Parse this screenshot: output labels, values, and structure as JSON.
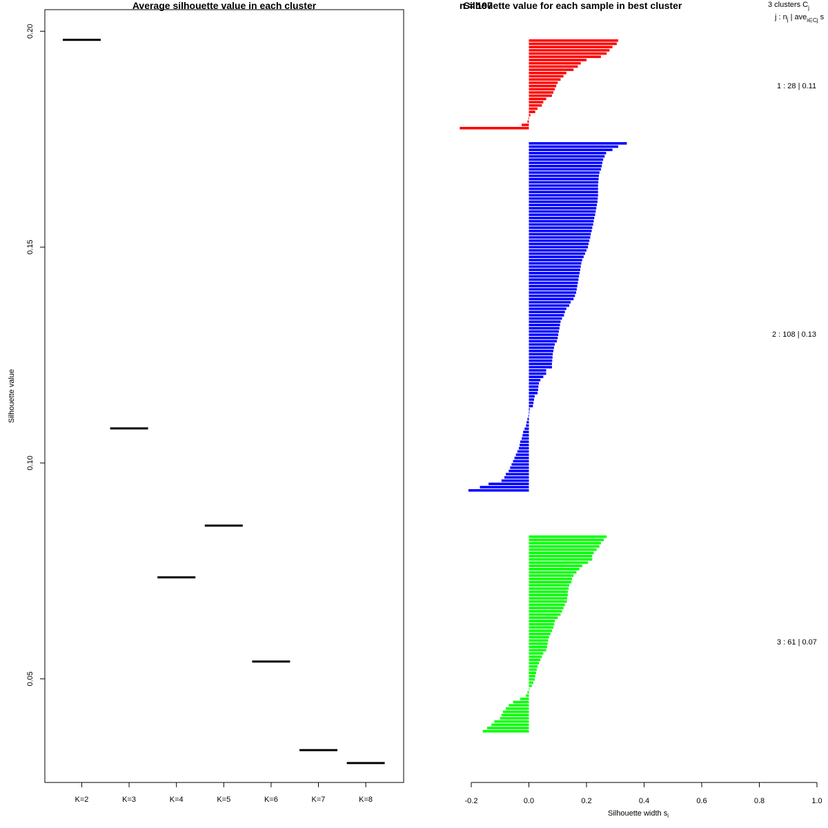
{
  "chart_data": [
    {
      "type": "line",
      "title": "Average silhouette value in each cluster",
      "xlabel": "",
      "ylabel": "Silhouette value",
      "categories": [
        "K=2",
        "K=3",
        "K=4",
        "K=5",
        "K=6",
        "K=7",
        "K=8"
      ],
      "values": [
        0.198,
        0.108,
        0.0735,
        0.0855,
        0.054,
        0.0335,
        0.0305
      ],
      "yticks": [
        "0.05",
        "0.10",
        "0.15",
        "0.20"
      ],
      "ylim": [
        0.026,
        0.205
      ],
      "marker": "horizontal-segment"
    },
    {
      "type": "bar",
      "orientation": "horizontal",
      "title": "Silhouette value for each sample in best cluster",
      "title_overlap": "n = 197",
      "xlabel": "Silhouette width s",
      "xlabel_sub": "i",
      "xticks": [
        "-0.2",
        "0.0",
        "0.2",
        "0.4",
        "0.6",
        "0.8",
        "1.0"
      ],
      "xlim": [
        -0.2,
        1.0
      ],
      "legend_header_1": "3  clusters  C",
      "legend_header_1_sub": "j",
      "legend_header_2": "j :  n",
      "legend_header_2_sub": "j",
      "legend_header_2_rest": " | ave",
      "legend_header_2_sub2": "i∈Cj",
      "legend_header_2_end": "  s",
      "series": [
        {
          "name": "cluster 1",
          "label": "1 :  28  |  0.11",
          "color": "#ff0000",
          "values": [
            0.31,
            0.305,
            0.29,
            0.28,
            0.27,
            0.25,
            0.2,
            0.18,
            0.17,
            0.155,
            0.13,
            0.12,
            0.11,
            0.1,
            0.095,
            0.09,
            0.085,
            0.08,
            0.06,
            0.05,
            0.045,
            0.03,
            0.022,
            0.005,
            -0.002,
            -0.005,
            -0.025,
            -0.24
          ]
        },
        {
          "name": "cluster 2",
          "label": "2 :  108  |  0.13",
          "color": "#0000ff",
          "values": [
            0.34,
            0.31,
            0.29,
            0.268,
            0.263,
            0.258,
            0.255,
            0.253,
            0.25,
            0.245,
            0.243,
            0.242,
            0.241,
            0.24,
            0.24,
            0.24,
            0.24,
            0.239,
            0.238,
            0.236,
            0.234,
            0.232,
            0.23,
            0.227,
            0.225,
            0.223,
            0.22,
            0.218,
            0.215,
            0.213,
            0.21,
            0.207,
            0.205,
            0.2,
            0.195,
            0.19,
            0.185,
            0.182,
            0.18,
            0.178,
            0.176,
            0.174,
            0.172,
            0.17,
            0.168,
            0.166,
            0.164,
            0.16,
            0.155,
            0.145,
            0.14,
            0.13,
            0.125,
            0.122,
            0.115,
            0.11,
            0.108,
            0.106,
            0.104,
            0.102,
            0.1,
            0.097,
            0.09,
            0.087,
            0.085,
            0.083,
            0.082,
            0.081,
            0.08,
            0.08,
            0.06,
            0.06,
            0.05,
            0.04,
            0.035,
            0.033,
            0.032,
            0.03,
            0.02,
            0.018,
            0.016,
            0.014,
            0.003,
            0.0,
            -0.002,
            -0.005,
            -0.008,
            -0.01,
            -0.015,
            -0.02,
            -0.022,
            -0.025,
            -0.03,
            -0.032,
            -0.035,
            -0.04,
            -0.045,
            -0.05,
            -0.055,
            -0.06,
            -0.065,
            -0.07,
            -0.08,
            -0.085,
            -0.095,
            -0.14,
            -0.17,
            -0.21
          ]
        },
        {
          "name": "cluster 3",
          "label": "3 :  61  |  0.07",
          "color": "#00ff00",
          "values": [
            0.27,
            0.26,
            0.25,
            0.245,
            0.235,
            0.225,
            0.22,
            0.22,
            0.205,
            0.185,
            0.175,
            0.165,
            0.155,
            0.15,
            0.148,
            0.14,
            0.138,
            0.135,
            0.135,
            0.133,
            0.132,
            0.125,
            0.12,
            0.115,
            0.11,
            0.1,
            0.09,
            0.088,
            0.085,
            0.08,
            0.075,
            0.07,
            0.067,
            0.065,
            0.063,
            0.06,
            0.05,
            0.045,
            0.04,
            0.035,
            0.03,
            0.027,
            0.025,
            0.022,
            0.02,
            0.015,
            0.01,
            0.0,
            -0.005,
            -0.01,
            -0.03,
            -0.055,
            -0.07,
            -0.08,
            -0.09,
            -0.095,
            -0.1,
            -0.12,
            -0.13,
            -0.145,
            -0.16
          ]
        }
      ]
    }
  ]
}
